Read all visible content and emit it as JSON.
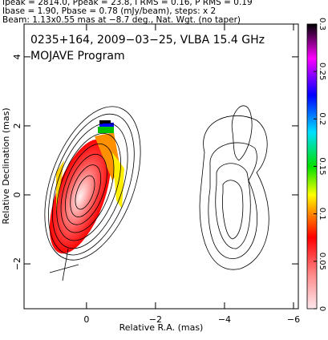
{
  "chart_data": {
    "type": "image",
    "header_lines": [
      "Ipeak = 2814.0, Ppeak = 23.8, I RMS = 0.16, P RMS = 0.19",
      "Ibase = 1.90, Pbase = 0.78 (mJy/beam), steps: x 2",
      "Beam: 1.13x0.55 mas at −8.7 deg., Nat. Wgt. (no taper)"
    ],
    "annotations": [
      "0235+164, 2009−03−25, VLBA 15.4 GHz",
      "MOJAVE Program"
    ],
    "x_label": "Relative R.A. (mas)",
    "y_label": "Relative Declination (mas)",
    "xlim": [
      1.81,
      -6.14
    ],
    "ylim": [
      -3.3,
      4.95
    ],
    "xticks": [
      0,
      {
        "value": -2,
        "label": "−2"
      },
      {
        "value": -4,
        "label": "−4"
      },
      {
        "value": -6,
        "label": "−6"
      }
    ],
    "yticks": [
      {
        "value": -2,
        "label": "−2"
      },
      0,
      2,
      4
    ],
    "colorbar": {
      "lim": [
        0,
        0.3
      ],
      "ticks": [
        0,
        0.05,
        0.1,
        0.15,
        0.2,
        0.25,
        0.3
      ]
    }
  }
}
